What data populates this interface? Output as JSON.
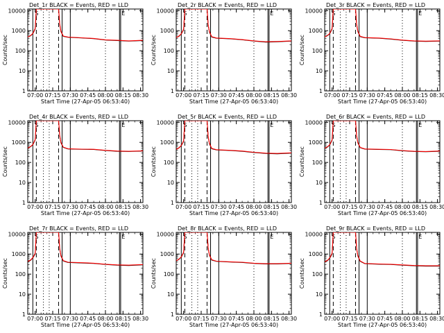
{
  "figure": {
    "colors": {
      "events": "#000000",
      "lld": "#ff0000",
      "axis": "#000000"
    }
  },
  "chart_data": [
    {
      "type": "line",
      "title": "Det_1r BLACK = Events, RED = LLD",
      "xlabel": "Start Time (27-Apr-05 06:53:40)",
      "ylabel": "Counts/sec",
      "yscale": "log",
      "ylim": [
        1,
        12000
      ],
      "x_tick_labels": [
        "07:00",
        "07:15",
        "07:30",
        "07:45",
        "08:00",
        "08:15",
        "08:30"
      ],
      "y_tick_labels": [
        "1",
        "10",
        "100",
        "1000",
        "10000"
      ],
      "markers": [
        {
          "label": "S",
          "x": "06:58"
        },
        {
          "label": "E",
          "x": "08:12"
        }
      ],
      "series": [
        {
          "color": "#000000",
          "x": [
            "06:53",
            "06:56",
            "06:58",
            "07:00",
            "07:01",
            "07:20",
            "07:21",
            "07:22",
            "07:24",
            "07:28",
            "07:40",
            "07:50",
            "08:00",
            "08:10",
            "08:20",
            "08:32"
          ],
          "y": [
            450,
            550,
            700,
            1200,
            12000,
            12000,
            2000,
            900,
            520,
            470,
            430,
            400,
            340,
            320,
            300,
            320
          ]
        },
        {
          "color": "#ff0000",
          "x": [
            "06:53",
            "06:56",
            "06:58",
            "07:00",
            "07:01",
            "07:20",
            "07:21",
            "07:22",
            "07:24",
            "07:28",
            "07:40",
            "07:50",
            "08:00",
            "08:10",
            "08:20",
            "08:32"
          ],
          "y": [
            460,
            570,
            720,
            1300,
            12000,
            12000,
            2100,
            950,
            540,
            480,
            440,
            410,
            350,
            330,
            310,
            330
          ]
        }
      ]
    },
    {
      "type": "line",
      "title": "Det_2r BLACK = Events, RED = LLD",
      "xlabel": "Start Time (27-Apr-05 06:53:40)",
      "ylabel": "Counts/sec",
      "yscale": "log",
      "ylim": [
        1,
        12000
      ],
      "x_tick_labels": [
        "07:00",
        "07:15",
        "07:30",
        "07:45",
        "08:00",
        "08:15",
        "08:30"
      ],
      "y_tick_labels": [
        "1",
        "10",
        "100",
        "1000",
        "10000"
      ],
      "markers": [
        {
          "label": "S",
          "x": "06:58"
        },
        {
          "label": "E",
          "x": "08:12"
        }
      ],
      "series": [
        {
          "color": "#000000",
          "x": [
            "06:53",
            "06:56",
            "06:58",
            "07:00",
            "07:01",
            "07:20",
            "07:21",
            "07:22",
            "07:24",
            "07:28",
            "07:40",
            "07:50",
            "08:00",
            "08:10",
            "08:20",
            "08:32"
          ],
          "y": [
            430,
            520,
            680,
            1100,
            12000,
            12000,
            1900,
            850,
            480,
            420,
            390,
            350,
            300,
            270,
            280,
            300
          ]
        },
        {
          "color": "#ff0000",
          "x": [
            "06:53",
            "06:56",
            "06:58",
            "07:00",
            "07:01",
            "07:20",
            "07:21",
            "07:22",
            "07:24",
            "07:28",
            "07:40",
            "07:50",
            "08:00",
            "08:10",
            "08:20",
            "08:32"
          ],
          "y": [
            440,
            540,
            700,
            1200,
            12000,
            12000,
            2000,
            900,
            500,
            430,
            400,
            360,
            310,
            280,
            290,
            310
          ]
        }
      ]
    },
    {
      "type": "line",
      "title": "Det_3r BLACK = Events, RED = LLD",
      "xlabel": "Start Time (27-Apr-05 06:53:40)",
      "ylabel": "Counts/sec",
      "yscale": "log",
      "ylim": [
        1,
        12000
      ],
      "x_tick_labels": [
        "07:00",
        "07:15",
        "07:30",
        "07:45",
        "08:00",
        "08:15",
        "08:30"
      ],
      "y_tick_labels": [
        "1",
        "10",
        "100",
        "1000",
        "10000"
      ],
      "markers": [
        {
          "label": "S",
          "x": "06:58"
        },
        {
          "label": "E",
          "x": "08:12"
        }
      ],
      "series": [
        {
          "color": "#000000",
          "x": [
            "06:53",
            "06:56",
            "06:58",
            "07:00",
            "07:01",
            "07:20",
            "07:21",
            "07:22",
            "07:24",
            "07:28",
            "07:40",
            "07:50",
            "08:00",
            "08:10",
            "08:20",
            "08:32"
          ],
          "y": [
            450,
            560,
            700,
            1200,
            12000,
            12000,
            2000,
            900,
            500,
            440,
            420,
            380,
            330,
            300,
            290,
            300
          ]
        },
        {
          "color": "#ff0000",
          "x": [
            "06:53",
            "06:56",
            "06:58",
            "07:00",
            "07:01",
            "07:20",
            "07:21",
            "07:22",
            "07:24",
            "07:28",
            "07:40",
            "07:50",
            "08:00",
            "08:10",
            "08:20",
            "08:32"
          ],
          "y": [
            460,
            580,
            720,
            1300,
            12000,
            12000,
            2100,
            950,
            520,
            450,
            430,
            390,
            340,
            310,
            300,
            310
          ]
        }
      ]
    },
    {
      "type": "line",
      "title": "Det_4r BLACK = Events, RED = LLD",
      "xlabel": "Start Time (27-Apr-05 06:53:40)",
      "ylabel": "Counts/sec",
      "yscale": "log",
      "ylim": [
        1,
        12000
      ],
      "x_tick_labels": [
        "07:00",
        "07:15",
        "07:30",
        "07:45",
        "08:00",
        "08:15",
        "08:30"
      ],
      "y_tick_labels": [
        "1",
        "10",
        "100",
        "1000",
        "10000"
      ],
      "markers": [
        {
          "label": "S",
          "x": "06:58"
        },
        {
          "label": "E",
          "x": "08:12"
        }
      ],
      "series": [
        {
          "color": "#000000",
          "x": [
            "06:53",
            "06:56",
            "06:58",
            "07:00",
            "07:01",
            "07:20",
            "07:21",
            "07:22",
            "07:24",
            "07:28",
            "07:40",
            "07:50",
            "08:00",
            "08:10",
            "08:20",
            "08:32"
          ],
          "y": [
            480,
            600,
            750,
            1300,
            12000,
            12000,
            2100,
            950,
            560,
            470,
            450,
            440,
            390,
            360,
            350,
            370
          ]
        },
        {
          "color": "#ff0000",
          "x": [
            "06:53",
            "06:56",
            "06:58",
            "07:00",
            "07:01",
            "07:20",
            "07:21",
            "07:22",
            "07:24",
            "07:28",
            "07:40",
            "07:50",
            "08:00",
            "08:10",
            "08:20",
            "08:32"
          ],
          "y": [
            490,
            620,
            770,
            1400,
            12000,
            12000,
            2200,
            1000,
            580,
            480,
            460,
            450,
            400,
            370,
            360,
            380
          ]
        }
      ]
    },
    {
      "type": "line",
      "title": "Det_5r BLACK = Events, RED = LLD",
      "xlabel": "Start Time (27-Apr-05 06:53:40)",
      "ylabel": "Counts/sec",
      "yscale": "log",
      "ylim": [
        1,
        12000
      ],
      "x_tick_labels": [
        "07:00",
        "07:15",
        "07:30",
        "07:45",
        "08:00",
        "08:15",
        "08:30"
      ],
      "y_tick_labels": [
        "1",
        "10",
        "100",
        "1000",
        "10000"
      ],
      "markers": [
        {
          "label": "S",
          "x": "06:58"
        },
        {
          "label": "E",
          "x": "08:12"
        }
      ],
      "series": [
        {
          "color": "#000000",
          "x": [
            "06:53",
            "06:56",
            "06:58",
            "07:00",
            "07:01",
            "07:20",
            "07:21",
            "07:22",
            "07:24",
            "07:28",
            "07:40",
            "07:50",
            "08:00",
            "08:10",
            "08:20",
            "08:32"
          ],
          "y": [
            420,
            520,
            680,
            1100,
            12000,
            12000,
            1900,
            850,
            480,
            420,
            390,
            360,
            310,
            280,
            270,
            290
          ]
        },
        {
          "color": "#ff0000",
          "x": [
            "06:53",
            "06:56",
            "06:58",
            "07:00",
            "07:01",
            "07:20",
            "07:21",
            "07:22",
            "07:24",
            "07:28",
            "07:40",
            "07:50",
            "08:00",
            "08:10",
            "08:20",
            "08:32"
          ],
          "y": [
            430,
            540,
            700,
            1200,
            12000,
            12000,
            2000,
            900,
            500,
            430,
            400,
            370,
            320,
            290,
            280,
            300
          ]
        }
      ]
    },
    {
      "type": "line",
      "title": "Det_6r BLACK = Events, RED = LLD",
      "xlabel": "Start Time (27-Apr-05 06:53:40)",
      "ylabel": "Counts/sec",
      "yscale": "log",
      "ylim": [
        1,
        12000
      ],
      "x_tick_labels": [
        "07:00",
        "07:15",
        "07:30",
        "07:45",
        "08:00",
        "08:15",
        "08:30"
      ],
      "y_tick_labels": [
        "1",
        "10",
        "100",
        "1000",
        "10000"
      ],
      "markers": [
        {
          "label": "S",
          "x": "06:58"
        },
        {
          "label": "E",
          "x": "08:12"
        }
      ],
      "series": [
        {
          "color": "#000000",
          "x": [
            "06:53",
            "06:56",
            "06:58",
            "07:00",
            "07:01",
            "07:20",
            "07:21",
            "07:22",
            "07:24",
            "07:28",
            "07:40",
            "07:50",
            "08:00",
            "08:10",
            "08:20",
            "08:32"
          ],
          "y": [
            470,
            580,
            740,
            1250,
            12000,
            12000,
            2000,
            950,
            540,
            460,
            440,
            430,
            380,
            350,
            340,
            360
          ]
        },
        {
          "color": "#ff0000",
          "x": [
            "06:53",
            "06:56",
            "06:58",
            "07:00",
            "07:01",
            "07:20",
            "07:21",
            "07:22",
            "07:24",
            "07:28",
            "07:40",
            "07:50",
            "08:00",
            "08:10",
            "08:20",
            "08:32"
          ],
          "y": [
            480,
            600,
            760,
            1350,
            12000,
            12000,
            2100,
            1000,
            560,
            470,
            450,
            440,
            390,
            360,
            350,
            370
          ]
        }
      ]
    },
    {
      "type": "line",
      "title": "Det_7r BLACK = Events, RED = LLD",
      "xlabel": "Start Time (27-Apr-05 06:53:40)",
      "ylabel": "Counts/sec",
      "yscale": "log",
      "ylim": [
        1,
        12000
      ],
      "x_tick_labels": [
        "07:00",
        "07:15",
        "07:30",
        "07:45",
        "08:00",
        "08:15",
        "08:30"
      ],
      "y_tick_labels": [
        "1",
        "10",
        "100",
        "1000",
        "10000"
      ],
      "markers": [
        {
          "label": "S",
          "x": "06:58"
        },
        {
          "label": "E",
          "x": "08:12"
        }
      ],
      "series": [
        {
          "color": "#000000",
          "x": [
            "06:53",
            "06:56",
            "06:58",
            "07:00",
            "07:01",
            "07:20",
            "07:21",
            "07:22",
            "07:24",
            "07:28",
            "07:40",
            "07:50",
            "08:00",
            "08:10",
            "08:20",
            "08:32"
          ],
          "y": [
            400,
            480,
            640,
            1000,
            12000,
            12000,
            1800,
            800,
            450,
            380,
            360,
            340,
            300,
            280,
            270,
            290
          ]
        },
        {
          "color": "#ff0000",
          "x": [
            "06:53",
            "06:56",
            "06:58",
            "07:00",
            "07:01",
            "07:20",
            "07:21",
            "07:22",
            "07:24",
            "07:28",
            "07:40",
            "07:50",
            "08:00",
            "08:10",
            "08:20",
            "08:32"
          ],
          "y": [
            410,
            500,
            660,
            1100,
            12000,
            12000,
            1900,
            850,
            470,
            390,
            370,
            350,
            310,
            290,
            280,
            300
          ]
        }
      ]
    },
    {
      "type": "line",
      "title": "Det_8r BLACK = Events, RED = LLD",
      "xlabel": "Start Time (27-Apr-05 06:53:40)",
      "ylabel": "Counts/sec",
      "yscale": "log",
      "ylim": [
        1,
        12000
      ],
      "x_tick_labels": [
        "07:00",
        "07:15",
        "07:30",
        "07:45",
        "08:00",
        "08:15",
        "08:30"
      ],
      "y_tick_labels": [
        "1",
        "10",
        "100",
        "1000",
        "10000"
      ],
      "markers": [
        {
          "label": "S",
          "x": "06:58"
        },
        {
          "label": "E",
          "x": "08:12"
        }
      ],
      "series": [
        {
          "color": "#000000",
          "x": [
            "06:53",
            "06:56",
            "06:58",
            "07:00",
            "07:01",
            "07:20",
            "07:21",
            "07:22",
            "07:24",
            "07:28",
            "07:40",
            "07:50",
            "08:00",
            "08:10",
            "08:20",
            "08:32"
          ],
          "y": [
            430,
            540,
            700,
            1150,
            12000,
            12000,
            1950,
            880,
            500,
            430,
            400,
            380,
            340,
            320,
            320,
            340
          ]
        },
        {
          "color": "#ff0000",
          "x": [
            "06:53",
            "06:56",
            "06:58",
            "07:00",
            "07:01",
            "07:20",
            "07:21",
            "07:22",
            "07:24",
            "07:28",
            "07:40",
            "07:50",
            "08:00",
            "08:10",
            "08:20",
            "08:32"
          ],
          "y": [
            440,
            560,
            720,
            1250,
            12000,
            12000,
            2050,
            920,
            520,
            440,
            410,
            390,
            350,
            330,
            330,
            350
          ]
        }
      ]
    },
    {
      "type": "line",
      "title": "Det_9r BLACK = Events, RED = LLD",
      "xlabel": "Start Time (27-Apr-05 06:53:40)",
      "ylabel": "Counts/sec",
      "yscale": "log",
      "ylim": [
        1,
        12000
      ],
      "x_tick_labels": [
        "07:00",
        "07:15",
        "07:30",
        "07:45",
        "08:00",
        "08:15",
        "08:30"
      ],
      "y_tick_labels": [
        "1",
        "10",
        "100",
        "1000",
        "10000"
      ],
      "markers": [
        {
          "label": "S",
          "x": "06:58"
        },
        {
          "label": "E",
          "x": "08:12"
        }
      ],
      "series": [
        {
          "color": "#000000",
          "x": [
            "06:53",
            "06:56",
            "06:58",
            "07:00",
            "07:01",
            "07:20",
            "07:21",
            "07:22",
            "07:24",
            "07:28",
            "07:40",
            "07:50",
            "08:00",
            "08:10",
            "08:20",
            "08:32"
          ],
          "y": [
            380,
            460,
            620,
            1000,
            12000,
            12000,
            1800,
            800,
            430,
            330,
            310,
            300,
            280,
            260,
            250,
            250
          ]
        },
        {
          "color": "#ff0000",
          "x": [
            "06:53",
            "06:56",
            "06:58",
            "07:00",
            "07:01",
            "07:20",
            "07:21",
            "07:22",
            "07:24",
            "07:28",
            "07:40",
            "07:50",
            "08:00",
            "08:10",
            "08:20",
            "08:32"
          ],
          "y": [
            390,
            480,
            640,
            1100,
            12000,
            12000,
            1900,
            850,
            450,
            340,
            320,
            310,
            290,
            270,
            260,
            260
          ]
        }
      ]
    }
  ]
}
